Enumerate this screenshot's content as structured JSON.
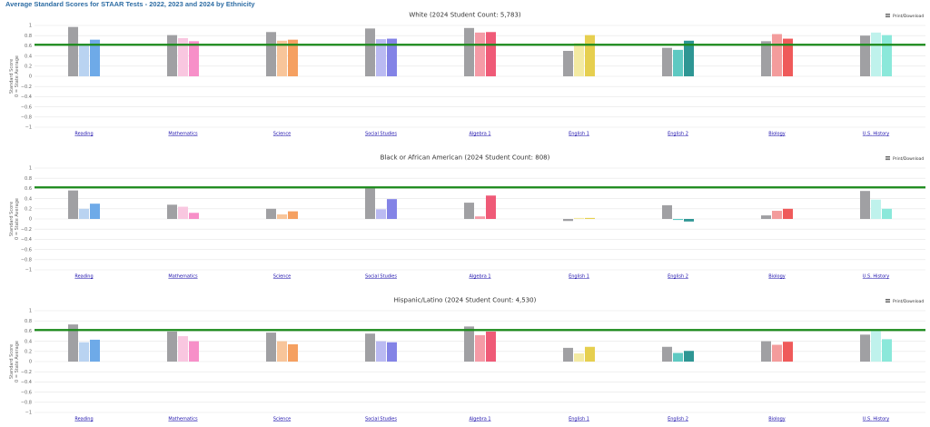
{
  "page_title": "Average Standard Scores for STAAR Tests - 2022, 2023 and 2024 by Ethnicity",
  "print_label": "Print/Download",
  "print_icon": "hamburger-menu-icon",
  "colors": {
    "grid": "#e6e6e6",
    "reference_line": "#1a8a1a",
    "prior_year": "#a0a0a3",
    "subjects": {
      "Reading": [
        "#a0a0a3",
        "#b9d3f1",
        "#6eaae8"
      ],
      "Mathematics": [
        "#a0a0a3",
        "#f9c7e0",
        "#f78fc8"
      ],
      "Science": [
        "#a0a0a3",
        "#f8c59a",
        "#f5a061"
      ],
      "Social Studies": [
        "#a0a0a3",
        "#babaf2",
        "#8383e6"
      ],
      "Algebra 1": [
        "#a0a0a3",
        "#f59aa6",
        "#ef5a77"
      ],
      "English 1": [
        "#a0a0a3",
        "#f3eaa2",
        "#e6cf4f"
      ],
      "English 2": [
        "#a0a0a3",
        "#5ec9c2",
        "#2e9694"
      ],
      "Biology": [
        "#a0a0a3",
        "#f39c9c",
        "#ef5a5a"
      ],
      "U.S. History": [
        "#a0a0a3",
        "#bff2ec",
        "#8be8da"
      ]
    }
  },
  "chart_data": [
    {
      "type": "bar",
      "title": "White (2024 Student Count: 5,783)",
      "ylabel_line1": "Standard Score",
      "ylabel_line2": "0 = State Average",
      "ylim": [
        -1,
        1
      ],
      "yticks": [
        "1",
        "0.8",
        "0.6",
        "0.4",
        "0.2",
        "0",
        "−0.2",
        "−0.4",
        "−0.6",
        "−0.8",
        "−1"
      ],
      "reference_line": 0.62,
      "categories": [
        "Reading",
        "Mathematics",
        "Science",
        "Social Studies",
        "Algebra 1",
        "English 1",
        "English 2",
        "Biology",
        "U.S. History"
      ],
      "series": [
        {
          "values": [
            0.97,
            0.81,
            0.87,
            0.94,
            0.95,
            0.5,
            0.56,
            0.69,
            0.8
          ]
        },
        {
          "values": [
            0.64,
            0.75,
            0.7,
            0.73,
            0.86,
            0.65,
            0.52,
            0.83,
            0.86
          ]
        },
        {
          "values": [
            0.72,
            0.69,
            0.72,
            0.74,
            0.87,
            0.81,
            0.7,
            0.74,
            0.81
          ]
        }
      ]
    },
    {
      "type": "bar",
      "title": "Black or African American (2024 Student Count: 808)",
      "ylabel_line1": "Standard Score",
      "ylabel_line2": "0 = State Average",
      "ylim": [
        -1,
        1
      ],
      "yticks": [
        "1",
        "0.8",
        "0.6",
        "0.4",
        "0.2",
        "0",
        "−0.2",
        "−0.4",
        "−0.6",
        "−0.8",
        "−1"
      ],
      "reference_line": 0.62,
      "categories": [
        "Reading",
        "Mathematics",
        "Science",
        "Social Studies",
        "Algebra 1",
        "English 1",
        "English 2",
        "Biology",
        "U.S. History"
      ],
      "series": [
        {
          "values": [
            0.56,
            0.28,
            0.2,
            0.62,
            0.32,
            -0.04,
            0.27,
            0.07,
            0.55
          ]
        },
        {
          "values": [
            0.2,
            0.24,
            0.09,
            0.19,
            0.05,
            0.02,
            -0.02,
            0.16,
            0.38
          ]
        },
        {
          "values": [
            0.3,
            0.12,
            0.15,
            0.39,
            0.46,
            0.02,
            -0.05,
            0.2,
            0.2
          ]
        }
      ]
    },
    {
      "type": "bar",
      "title": "Hispanic/Latino (2024 Student Count: 4,530)",
      "ylabel_line1": "Standard Score",
      "ylabel_line2": "0 = State Average",
      "ylim": [
        -1,
        1
      ],
      "yticks": [
        "1",
        "0.8",
        "0.6",
        "0.4",
        "0.2",
        "0",
        "−0.2",
        "−0.4",
        "−0.6",
        "−0.8",
        "−1"
      ],
      "reference_line": 0.62,
      "categories": [
        "Reading",
        "Mathematics",
        "Science",
        "Social Studies",
        "Algebra 1",
        "English 1",
        "English 2",
        "Biology",
        "U.S. History"
      ],
      "series": [
        {
          "values": [
            0.73,
            0.59,
            0.57,
            0.55,
            0.69,
            0.27,
            0.29,
            0.4,
            0.53
          ]
        },
        {
          "values": [
            0.38,
            0.5,
            0.4,
            0.4,
            0.52,
            0.16,
            0.17,
            0.33,
            0.63
          ]
        },
        {
          "values": [
            0.43,
            0.4,
            0.34,
            0.38,
            0.59,
            0.29,
            0.21,
            0.39,
            0.44
          ]
        }
      ]
    }
  ]
}
